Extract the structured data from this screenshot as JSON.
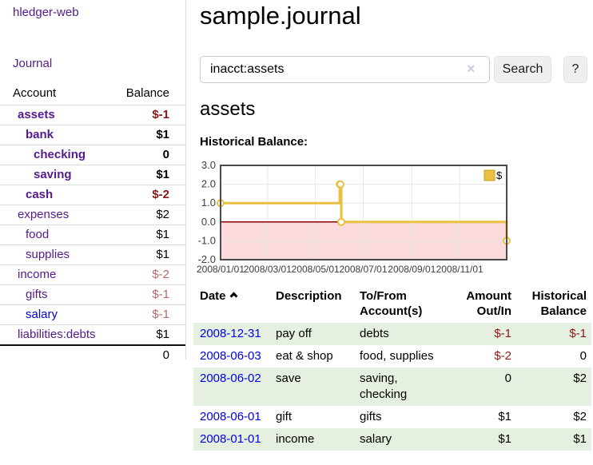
{
  "sidebar": {
    "app_title": "hledger-web",
    "nav": {
      "journal_label": "Journal"
    },
    "accounts_table": {
      "col_account": "Account",
      "col_balance": "Balance",
      "rows": [
        {
          "name": "assets",
          "depth": 0,
          "balance": "$-1",
          "bold": true,
          "neg": "strong"
        },
        {
          "name": "bank",
          "depth": 1,
          "balance": "$1",
          "bold": true,
          "neg": "none"
        },
        {
          "name": "checking",
          "depth": 2,
          "balance": "0",
          "bold": true,
          "neg": "none"
        },
        {
          "name": "saving",
          "depth": 2,
          "balance": "$1",
          "bold": true,
          "neg": "none"
        },
        {
          "name": "cash",
          "depth": 1,
          "balance": "$-2",
          "bold": true,
          "neg": "strong"
        },
        {
          "name": "expenses",
          "depth": 0,
          "balance": "$2",
          "bold": false,
          "neg": "none"
        },
        {
          "name": "food",
          "depth": 1,
          "balance": "$1",
          "bold": false,
          "neg": "none"
        },
        {
          "name": "supplies",
          "depth": 1,
          "balance": "$1",
          "bold": false,
          "neg": "none"
        },
        {
          "name": "income",
          "depth": 0,
          "balance": "$-2",
          "bold": false,
          "neg": "soft"
        },
        {
          "name": "gifts",
          "depth": 1,
          "balance": "$-1",
          "bold": false,
          "neg": "soft"
        },
        {
          "name": "salary",
          "depth": 1,
          "balance": "$-1",
          "bold": false,
          "neg": "soft",
          "link_color": "blue"
        },
        {
          "name": "liabilities:debts",
          "depth": 0,
          "balance": "$1",
          "bold": false,
          "neg": "none"
        }
      ],
      "total": "0"
    }
  },
  "main": {
    "title": "sample.journal",
    "search": {
      "value": "inacct:assets",
      "clear_icon": "×",
      "button_label": "Search",
      "help_label": "?"
    },
    "account_heading": "assets",
    "chart_label": "Historical Balance:"
  },
  "chart_data": {
    "type": "line",
    "style": "step",
    "title": "Historical Balance:",
    "xlabel": "",
    "ylabel": "",
    "ylim": [
      -2.0,
      3.0
    ],
    "yticks": [
      3.0,
      2.0,
      1.0,
      0.0,
      -1.0,
      -2.0
    ],
    "xrange_days": [
      0,
      365
    ],
    "xticks": [
      {
        "day": 0,
        "label": "2008/01/01"
      },
      {
        "day": 60,
        "label": "2008/03/01"
      },
      {
        "day": 121,
        "label": "2008/05/01"
      },
      {
        "day": 182,
        "label": "2008/07/01"
      },
      {
        "day": 244,
        "label": "2008/09/01"
      },
      {
        "day": 305,
        "label": "2008/11/01"
      }
    ],
    "series": [
      {
        "name": "$",
        "color": "#e9c042",
        "points": [
          {
            "date": "2008-01-01",
            "day": 0,
            "value": 1
          },
          {
            "date": "2008-06-01",
            "day": 152,
            "value": 2
          },
          {
            "date": "2008-06-02",
            "day": 153,
            "value": 2
          },
          {
            "date": "2008-06-03",
            "day": 154,
            "value": 0
          },
          {
            "date": "2008-12-31",
            "day": 365,
            "value": -1
          }
        ]
      }
    ],
    "legend": {
      "label": "$",
      "position": "top-right"
    },
    "grid": true,
    "negative_region_color": "#fadada",
    "zero_line_color": "#8b0000"
  },
  "register_table": {
    "headers": {
      "date": "Date",
      "description": "Description",
      "accounts_line1": "To/From",
      "accounts_line2": "Account(s)",
      "amount_line1": "Amount",
      "amount_line2": "Out/In",
      "balance_line1": "Historical",
      "balance_line2": "Balance"
    },
    "rows": [
      {
        "date": "2008-12-31",
        "description": "pay off",
        "accounts": "debts",
        "amount": "$-1",
        "amount_neg": true,
        "balance": "$-1",
        "balance_neg": true,
        "shade": true
      },
      {
        "date": "2008-06-03",
        "description": "eat & shop",
        "accounts": "food, supplies",
        "amount": "$-2",
        "amount_neg": true,
        "balance": "0",
        "balance_neg": false,
        "shade": false
      },
      {
        "date": "2008-06-02",
        "description": "save",
        "accounts": "saving, checking",
        "amount": "0",
        "amount_neg": false,
        "balance": "$2",
        "balance_neg": false,
        "shade": true
      },
      {
        "date": "2008-06-01",
        "description": "gift",
        "accounts": "gifts",
        "amount": "$1",
        "amount_neg": false,
        "balance": "$2",
        "balance_neg": false,
        "shade": false
      },
      {
        "date": "2008-01-01",
        "description": "income",
        "accounts": "salary",
        "amount": "$1",
        "amount_neg": false,
        "balance": "$1",
        "balance_neg": false,
        "shade": true
      }
    ]
  },
  "colors": {
    "link_purple": "#551a8b",
    "link_blue": "#0000e6",
    "negative_strong": "#8b1616",
    "negative_soft": "#b56a6a",
    "row_shade_green": "#e6f0e0",
    "series_gold": "#e9c042",
    "chart_negative_region": "#fadada",
    "chart_zero_line": "#8b0000",
    "chart_border": "#4a4a4a",
    "grid_line": "#e7e7e7",
    "button_bg": "#efefef"
  }
}
